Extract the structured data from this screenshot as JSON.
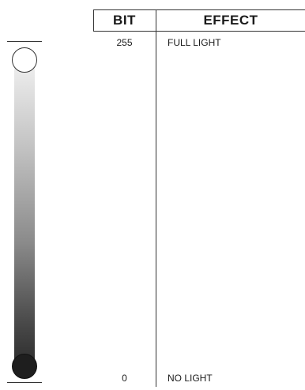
{
  "table": {
    "headers": {
      "bit": "BIT",
      "effect": "EFFECT"
    },
    "rows": [
      {
        "bit": "255",
        "effect": "FULL LIGHT"
      },
      {
        "bit": "0",
        "effect": "NO LIGHT"
      }
    ]
  },
  "fader": {
    "top_knob_color": "#ffffff",
    "bottom_knob_color": "#1e1e1e",
    "gradient": [
      "#f4f4f4",
      "#2a2a2a"
    ]
  }
}
